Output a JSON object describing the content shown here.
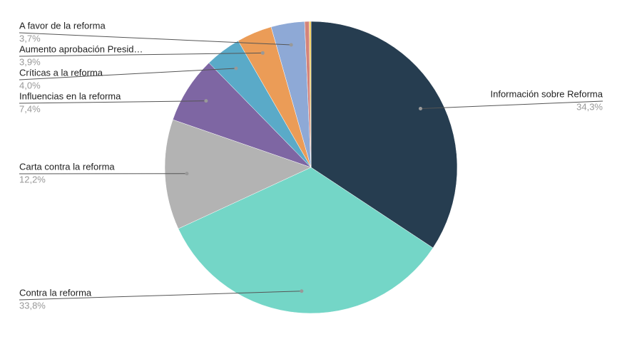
{
  "chart_data": {
    "type": "pie",
    "categories": [
      "Información sobre Reforma",
      "Contra la reforma",
      "Carta contra la reforma",
      "Influencias en la reforma",
      "Críticas a la reforma",
      "Aumento aprobación Presid…",
      "A favor de la reforma",
      null,
      null
    ],
    "values": [
      34.3,
      33.8,
      12.2,
      7.4,
      4.0,
      3.9,
      3.7,
      0.5,
      0.2
    ],
    "value_labels": [
      "34,3%",
      "33,8%",
      "12,2%",
      "7,4%",
      "4,0%",
      "3,9%",
      "3,7%",
      null,
      null
    ],
    "colors": [
      "#263d50",
      "#74d6c7",
      "#b3b3b3",
      "#7e66a3",
      "#5aaac8",
      "#eb9c57",
      "#8ea9d6",
      "#d4847a",
      "#f2c94c"
    ]
  }
}
